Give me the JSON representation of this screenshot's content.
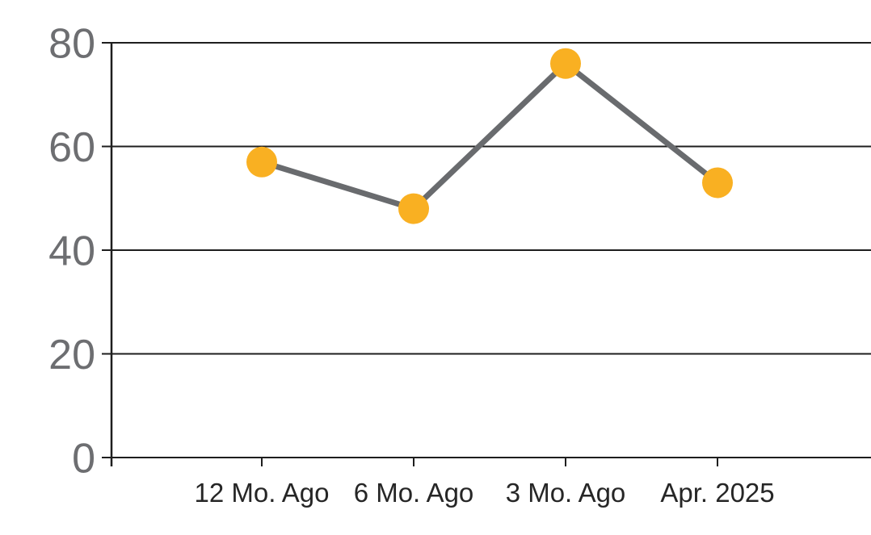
{
  "chart_data": {
    "type": "line",
    "title": "",
    "xlabel": "",
    "ylabel": "",
    "categories": [
      "12 Mo. Ago",
      "6 Mo. Ago",
      "3 Mo. Ago",
      "Apr. 2025"
    ],
    "series": [
      {
        "name": "values",
        "values": [
          57,
          48,
          76,
          53
        ]
      }
    ],
    "ylim": [
      0,
      80
    ],
    "yticks": [
      0,
      20,
      40,
      60,
      80
    ],
    "grid": true,
    "legend": false,
    "colors": {
      "marker": "#F9B022",
      "line": "#696B6E",
      "grid": "#1E1E1E",
      "axis": "#1E1E1E",
      "y_tick_label": "#6D6E71",
      "x_tick_label": "#262626",
      "background": "#FFFFFF"
    }
  }
}
